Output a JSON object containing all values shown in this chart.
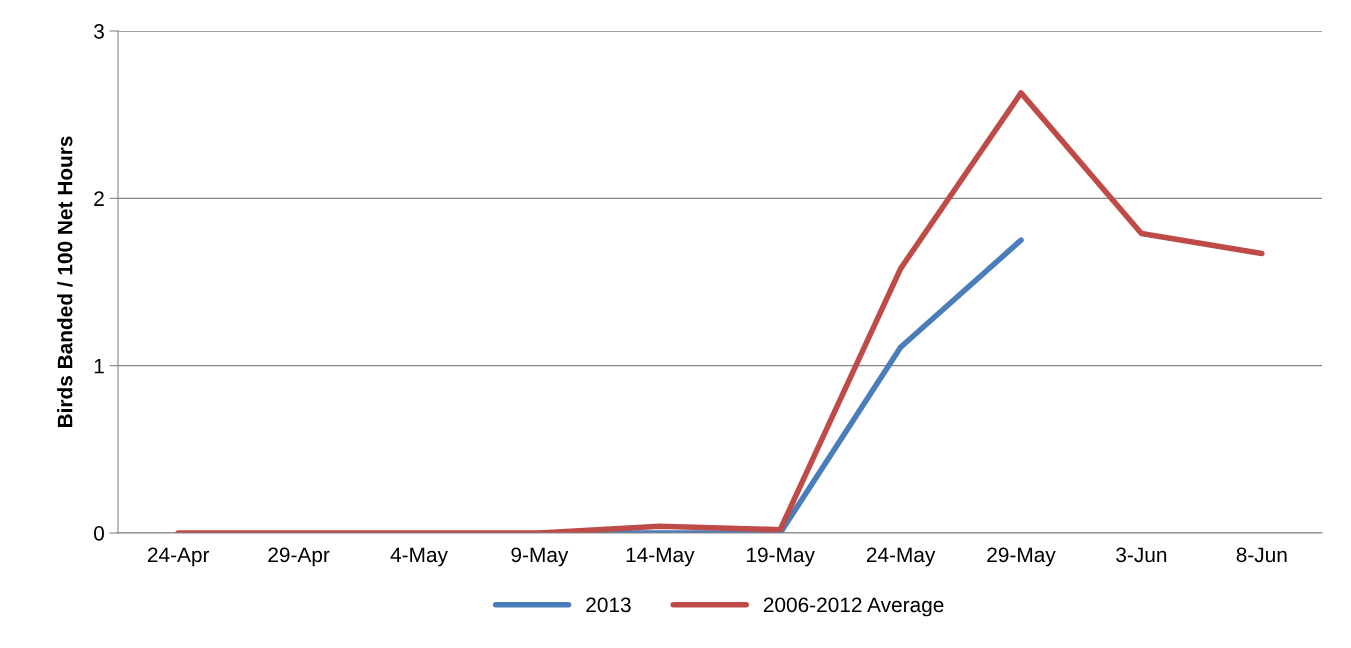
{
  "chart_data": {
    "type": "line",
    "ylabel": "Birds Banded / 100 Net Hours",
    "categories": [
      "24-Apr",
      "29-Apr",
      "4-May",
      "9-May",
      "14-May",
      "19-May",
      "24-May",
      "29-May",
      "3-Jun",
      "8-Jun"
    ],
    "series": [
      {
        "name": "2013",
        "color": "#4a7ebb",
        "values": [
          null,
          null,
          null,
          0,
          0,
          0,
          1.11,
          1.75,
          null,
          null
        ]
      },
      {
        "name": "2006-2012 Average",
        "color": "#be4b48",
        "values": [
          0,
          0,
          0,
          0,
          0.04,
          0.02,
          1.58,
          2.63,
          1.79,
          1.67
        ]
      }
    ],
    "ylim": [
      0,
      3
    ],
    "yticks": [
      0,
      1,
      2,
      3
    ],
    "grid": "y",
    "legend": "bottom",
    "marker": "none",
    "line_style": "solid"
  }
}
